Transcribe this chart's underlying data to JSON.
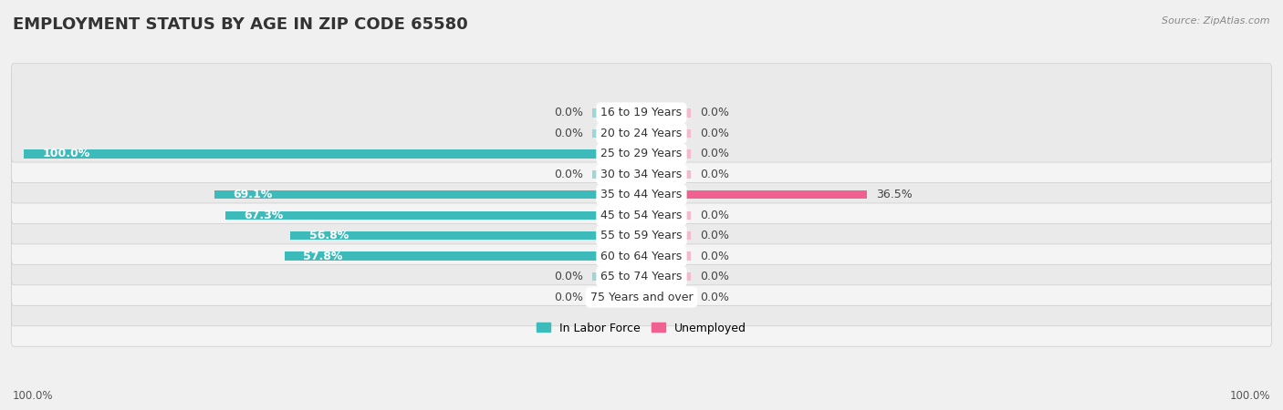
{
  "title": "EMPLOYMENT STATUS BY AGE IN ZIP CODE 65580",
  "source_text": "Source: ZipAtlas.com",
  "categories": [
    "16 to 19 Years",
    "20 to 24 Years",
    "25 to 29 Years",
    "30 to 34 Years",
    "35 to 44 Years",
    "45 to 54 Years",
    "55 to 59 Years",
    "60 to 64 Years",
    "65 to 74 Years",
    "75 Years and over"
  ],
  "labor_force": [
    0.0,
    0.0,
    100.0,
    0.0,
    69.1,
    67.3,
    56.8,
    57.8,
    0.0,
    0.0
  ],
  "unemployed": [
    0.0,
    0.0,
    0.0,
    0.0,
    36.5,
    0.0,
    0.0,
    0.0,
    0.0,
    0.0
  ],
  "teal_color": "#3DBBBB",
  "pink_color": "#F06090",
  "teal_light": "#9ED5D5",
  "pink_light": "#F5B8CC",
  "row_color_odd": "#EAEAEA",
  "row_color_even": "#F4F4F4",
  "max_val": 100.0,
  "legend_labor": "In Labor Force",
  "legend_unemployed": "Unemployed",
  "x_left_label": "100.0%",
  "x_right_label": "100.0%",
  "title_fontsize": 13,
  "label_fontsize": 9,
  "category_fontsize": 9,
  "small_bar_size": 8.0,
  "label_threshold": 50.0
}
